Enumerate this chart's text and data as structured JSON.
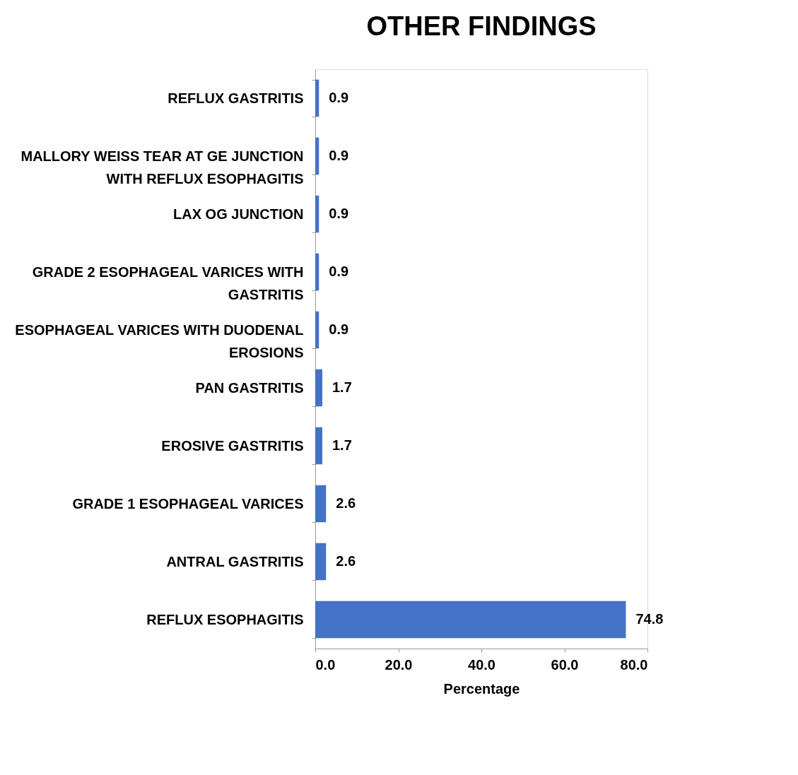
{
  "chart_data": {
    "type": "bar",
    "orientation": "horizontal",
    "title": "OTHER FINDINGS",
    "xlabel": "Percentage",
    "categories": [
      "REFLUX GASTRITIS",
      "MALLORY WEISS TEAR AT GE JUNCTION WITH REFLUX ESOPHAGITIS",
      "LAX OG JUNCTION",
      "GRADE 2 ESOPHAGEAL VARICES WITH GASTRITIS",
      "ESOPHAGEAL VARICES WITH DUODENAL EROSIONS",
      "PAN GASTRITIS",
      "EROSIVE GASTRITIS",
      "GRADE 1 ESOPHAGEAL VARICES",
      "ANTRAL GASTRITIS",
      "REFLUX ESOPHAGITIS"
    ],
    "values": [
      0.9,
      0.9,
      0.9,
      0.9,
      0.9,
      1.7,
      1.7,
      2.6,
      2.6,
      74.8
    ],
    "color": "#4472c4",
    "xlim": [
      0,
      80
    ],
    "xticks": [
      {
        "value": 0,
        "label": "0.0"
      },
      {
        "value": 20,
        "label": "20.0"
      },
      {
        "value": 40,
        "label": "40.0"
      },
      {
        "value": 60,
        "label": "60.0"
      },
      {
        "value": 80,
        "label": "80.0"
      }
    ],
    "data_labels": true,
    "grid": false
  }
}
